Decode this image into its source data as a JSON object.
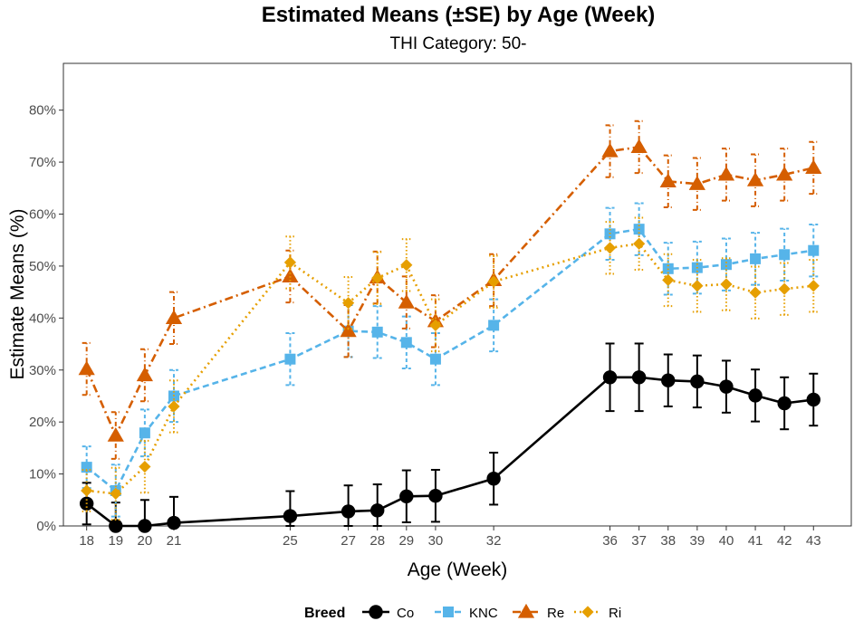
{
  "chart_data": {
    "type": "line",
    "title": "Estimated Means (±SE) by Age (Week)",
    "subtitle": "THI Category: 50-",
    "xlabel": "Age (Week)",
    "ylabel": "Estimate Means (%)",
    "x": [
      18,
      19,
      20,
      21,
      25,
      27,
      28,
      29,
      30,
      32,
      36,
      37,
      38,
      39,
      40,
      41,
      42,
      43
    ],
    "x_tick_labels": [
      "18",
      "19",
      "20",
      "21",
      "25",
      "27",
      "28",
      "29",
      "30",
      "32",
      "36",
      "37",
      "38",
      "39",
      "40",
      "41",
      "42",
      "43"
    ],
    "xlim": [
      17.2,
      44.3
    ],
    "ylim": [
      0,
      89
    ],
    "y_ticks": [
      0,
      10,
      20,
      30,
      40,
      50,
      60,
      70,
      80
    ],
    "y_tick_labels": [
      "0%",
      "10%",
      "20%",
      "30%",
      "40%",
      "50%",
      "60%",
      "70%",
      "80%"
    ],
    "legend": {
      "title": "Breed",
      "position": "bottom"
    },
    "series": [
      {
        "name": "Co",
        "color": "#000000",
        "dash": "solid",
        "marker": "circle",
        "values": [
          4.3,
          0,
          0,
          0.6,
          1.9,
          2.8,
          3.0,
          5.7,
          5.8,
          9.1,
          28.6,
          28.6,
          28.0,
          27.8,
          26.8,
          25.1,
          23.6,
          24.3
        ],
        "se": [
          4.0,
          4.5,
          5.0,
          5.0,
          4.8,
          5.0,
          5.0,
          5.0,
          5.0,
          5.0,
          6.5,
          6.5,
          5.0,
          5.0,
          5.0,
          5.0,
          5.0,
          5.0
        ]
      },
      {
        "name": "KNC",
        "color": "#56B4E9",
        "dash": "dashed",
        "marker": "square",
        "values": [
          11.3,
          6.8,
          17.9,
          25.0,
          32.1,
          37.5,
          37.3,
          35.3,
          32.1,
          38.6,
          56.2,
          57.1,
          49.5,
          49.7,
          50.3,
          51.4,
          52.2,
          53.0
        ],
        "se": [
          4.0,
          5.0,
          4.5,
          5.0,
          5.0,
          5.0,
          5.0,
          5.0,
          5.0,
          5.0,
          5.0,
          5.0,
          5.0,
          5.0,
          5.0,
          5.0,
          5.0,
          5.0
        ]
      },
      {
        "name": "Re",
        "color": "#D55E00",
        "dash": "dashdot",
        "marker": "triangle",
        "values": [
          30.2,
          17.4,
          29.0,
          40.0,
          48.0,
          37.5,
          47.8,
          43.0,
          39.4,
          47.3,
          72.1,
          72.9,
          66.3,
          65.8,
          67.6,
          66.5,
          67.6,
          68.9
        ],
        "se": [
          5.0,
          4.5,
          5.0,
          5.0,
          5.0,
          5.0,
          5.0,
          5.0,
          5.0,
          5.0,
          5.0,
          5.0,
          5.0,
          5.0,
          5.0,
          5.0,
          5.0,
          5.0
        ]
      },
      {
        "name": "Ri",
        "color": "#E69F00",
        "dash": "dotted",
        "marker": "diamond",
        "values": [
          6.8,
          6.2,
          11.4,
          23.0,
          50.7,
          42.9,
          47.7,
          50.2,
          38.6,
          47.0,
          53.5,
          54.3,
          47.3,
          46.2,
          46.5,
          44.9,
          45.6,
          46.2
        ],
        "se": [
          4.0,
          5.0,
          5.0,
          5.0,
          5.0,
          5.0,
          5.0,
          5.0,
          5.0,
          5.0,
          5.0,
          5.0,
          5.0,
          5.0,
          5.0,
          5.0,
          5.0,
          5.0
        ]
      }
    ]
  }
}
